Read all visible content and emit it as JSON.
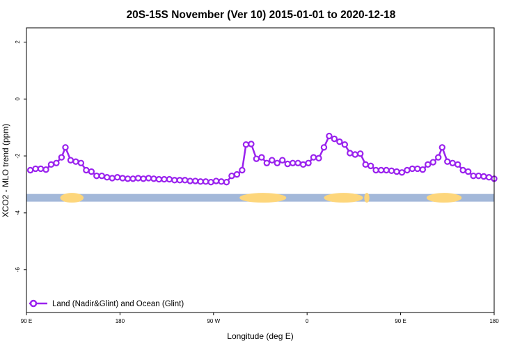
{
  "chart_data": {
    "type": "line",
    "title": "20S-15S November (Ver 10)   2015-01-01 to 2020-12-18",
    "xlabel": "Longitude (deg E)",
    "ylabel": "XCO2 - MLO trend (ppm)",
    "xlim": [
      90,
      450
    ],
    "ylim": [
      -7.5,
      2.5
    ],
    "x_ticks": [
      {
        "value": 90,
        "label": "90 E"
      },
      {
        "value": 162,
        "label": "180"
      },
      {
        "value": 234,
        "label": "90 W"
      },
      {
        "value": 306,
        "label": "0"
      },
      {
        "value": 378,
        "label": "90 E"
      },
      {
        "value": 450,
        "label": "180"
      }
    ],
    "y_ticks": [
      {
        "value": 2,
        "label": "2"
      },
      {
        "value": 0,
        "label": "0"
      },
      {
        "value": -2,
        "label": "-2"
      },
      {
        "value": -4,
        "label": "-4"
      },
      {
        "value": -6,
        "label": "-6"
      }
    ],
    "grid": false,
    "legend_position": "bottom-left",
    "series": [
      {
        "name": "Land (Nadir&Glint) and Ocean (Glint)",
        "color": "#9a22ee",
        "marker": "open-circle",
        "x": [
          93,
          97,
          101,
          105,
          109,
          113,
          117,
          120,
          124,
          128,
          132,
          136,
          140,
          144,
          148,
          152,
          156,
          160,
          164,
          168,
          172,
          176,
          180,
          184,
          188,
          192,
          196,
          200,
          204,
          208,
          212,
          216,
          220,
          224,
          228,
          232,
          236,
          240,
          244,
          248,
          252,
          256,
          259,
          263,
          267,
          271,
          275,
          279,
          283,
          287,
          291,
          295,
          299,
          303,
          307,
          311,
          315,
          319,
          323,
          327,
          331,
          335,
          339,
          343,
          347,
          351,
          355,
          359,
          363,
          367,
          371,
          375,
          379,
          383,
          387,
          391,
          395,
          399,
          403,
          407,
          410,
          414,
          418,
          422,
          426,
          430,
          434,
          438,
          442,
          446,
          450
        ],
        "y": [
          -2.5,
          -2.45,
          -2.45,
          -2.48,
          -2.3,
          -2.25,
          -2.05,
          -1.7,
          -2.15,
          -2.2,
          -2.25,
          -2.5,
          -2.55,
          -2.7,
          -2.7,
          -2.75,
          -2.78,
          -2.75,
          -2.78,
          -2.8,
          -2.8,
          -2.78,
          -2.8,
          -2.78,
          -2.8,
          -2.82,
          -2.82,
          -2.82,
          -2.85,
          -2.85,
          -2.85,
          -2.88,
          -2.88,
          -2.9,
          -2.9,
          -2.92,
          -2.88,
          -2.9,
          -2.92,
          -2.7,
          -2.65,
          -2.5,
          -1.6,
          -1.58,
          -2.1,
          -2.05,
          -2.25,
          -2.15,
          -2.25,
          -2.15,
          -2.28,
          -2.25,
          -2.25,
          -2.3,
          -2.25,
          -2.05,
          -2.08,
          -1.7,
          -1.3,
          -1.4,
          -1.5,
          -1.6,
          -1.9,
          -1.95,
          -1.92,
          -2.3,
          -2.35,
          -2.5,
          -2.5,
          -2.5,
          -2.52,
          -2.55,
          -2.58,
          -2.5,
          -2.45,
          -2.45,
          -2.48,
          -2.3,
          -2.22,
          -2.05,
          -1.7,
          -2.2,
          -2.25,
          -2.3,
          -2.5,
          -2.55,
          -2.7,
          -2.7,
          -2.72,
          -2.75,
          -2.8
        ]
      }
    ],
    "surface_strip": {
      "y_center": -3.47,
      "ocean_color": "#a3b8d9",
      "land_color": "#fdd67b",
      "land_segments": [
        [
          116,
          134
        ],
        [
          254,
          290
        ],
        [
          319,
          349
        ],
        [
          350,
          354
        ],
        [
          398,
          425
        ]
      ]
    }
  }
}
